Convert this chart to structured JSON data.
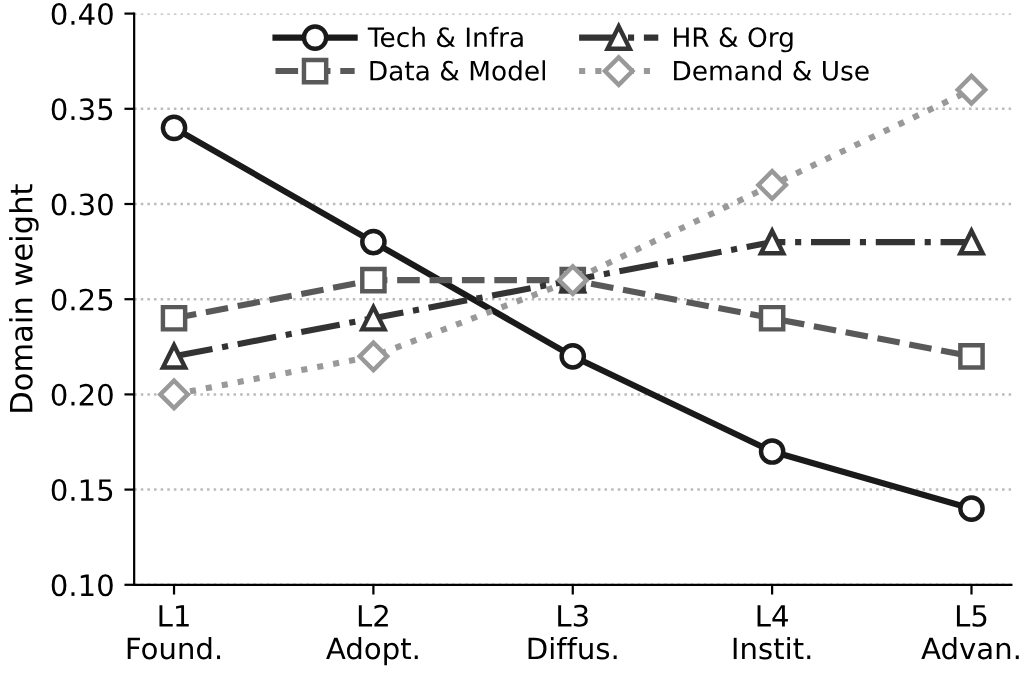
{
  "chart_data": {
    "type": "line",
    "ylabel": "Domain weight",
    "categories": [
      "L1\nFound.",
      "L2\nAdopt.",
      "L3\nDiffus.",
      "L4\nInstit.",
      "L5\nAdvan."
    ],
    "series": [
      {
        "name": "Tech & Infra",
        "color": "#1a1a1a",
        "marker": "circle",
        "line_style": "solid",
        "values": [
          0.34,
          0.28,
          0.22,
          0.17,
          0.14
        ]
      },
      {
        "name": "Data & Model",
        "color": "#595959",
        "marker": "square",
        "line_style": "dashed",
        "values": [
          0.24,
          0.26,
          0.26,
          0.24,
          0.22
        ]
      },
      {
        "name": "HR & Org",
        "color": "#333333",
        "marker": "triangle",
        "line_style": "dashdot",
        "values": [
          0.22,
          0.24,
          0.26,
          0.28,
          0.28
        ]
      },
      {
        "name": "Demand & Use",
        "color": "#999999",
        "marker": "diamond",
        "line_style": "dotted",
        "values": [
          0.2,
          0.22,
          0.26,
          0.31,
          0.36
        ]
      }
    ],
    "ylim": [
      0.1,
      0.4
    ],
    "yticks": [
      {
        "value": 0.1,
        "label": "0.10"
      },
      {
        "value": 0.15,
        "label": "0.15"
      },
      {
        "value": 0.2,
        "label": "0.20"
      },
      {
        "value": 0.25,
        "label": "0.25"
      },
      {
        "value": 0.3,
        "label": "0.30"
      },
      {
        "value": 0.35,
        "label": "0.35"
      },
      {
        "value": 0.4,
        "label": "0.40"
      }
    ],
    "grid": "y",
    "legend": "top"
  }
}
